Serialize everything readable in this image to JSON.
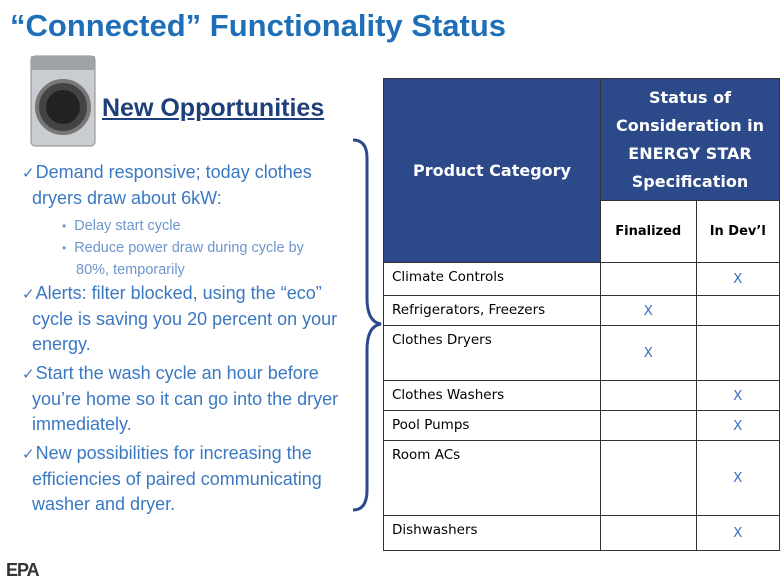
{
  "title": "“Connected” Functionality Status",
  "heading": "New Opportunities",
  "bullets": [
    {
      "text": "Demand responsive; today clothes dryers draw about 6kW:",
      "sub": [
        "Delay start cycle",
        "Reduce power draw during cycle by 80%, temporarily"
      ]
    },
    {
      "text": "Alerts: filter blocked, using the “eco” cycle is saving you 20 percent on your energy."
    },
    {
      "text": "Start the wash cycle an hour before you’re home so it can go into the dryer immediately."
    },
    {
      "text": "New possibilities for increasing the efficiencies of paired communicating washer and dryer."
    }
  ],
  "table": {
    "header": {
      "category": "Product Category",
      "status": "Status of Consideration in ENERGY STAR Specification"
    },
    "subheader": {
      "finalized": "Finalized",
      "in_devl": "In Dev’l"
    },
    "rows": [
      {
        "category": "Climate Controls",
        "in_devl": "X"
      },
      {
        "category": "Refrigerators, Freezers",
        "finalized": "X"
      },
      {
        "category": "Clothes Dryers",
        "finalized": "X"
      },
      {
        "category": "Clothes Washers",
        "in_devl": "X"
      },
      {
        "category": "Pool Pumps",
        "in_devl": "X"
      },
      {
        "category": "Room ACs",
        "in_devl": "X"
      },
      {
        "category": "Dishwashers",
        "in_devl": "X"
      }
    ]
  },
  "footer": "EPA"
}
